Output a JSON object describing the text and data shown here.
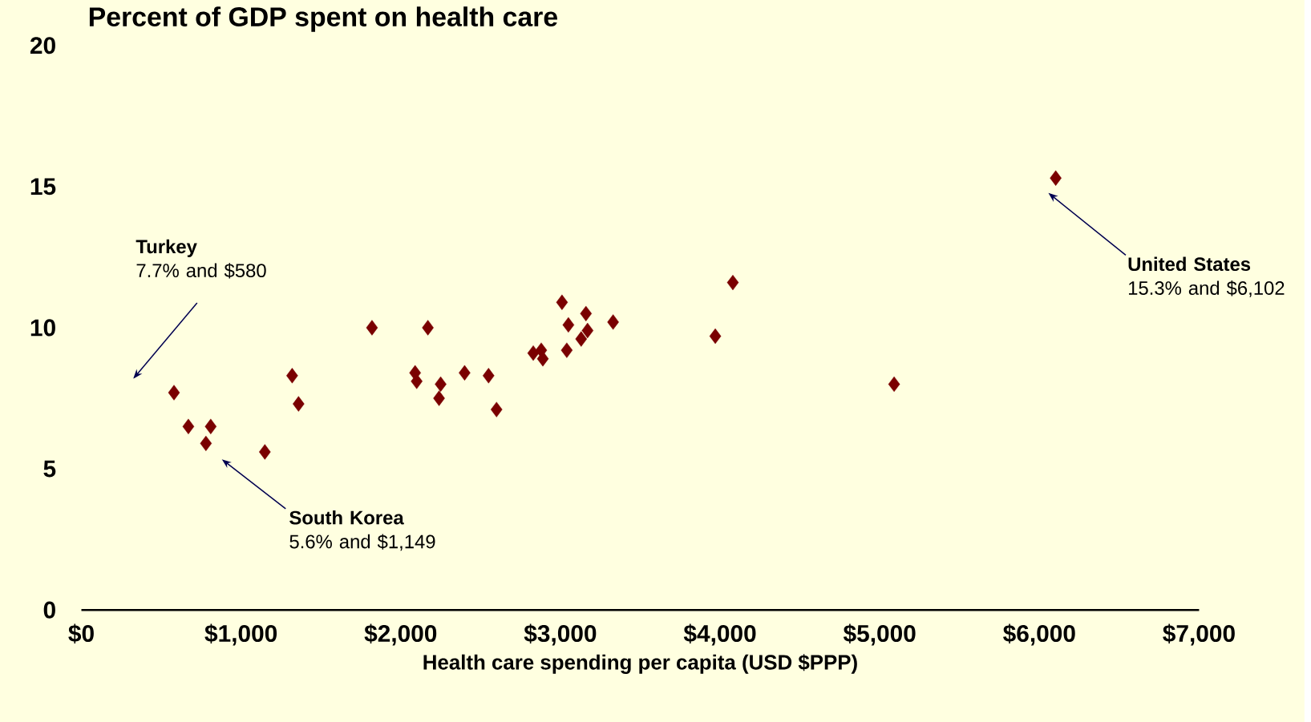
{
  "chart_data": {
    "type": "scatter",
    "title": "Percent of GDP spent on health care",
    "xlabel": "Health care spending per capita (USD $PPP)",
    "x": [
      580,
      670,
      810,
      780,
      1149,
      1320,
      1360,
      1820,
      2170,
      2090,
      2100,
      2250,
      2240,
      2400,
      2550,
      2600,
      2830,
      2880,
      2890,
      3010,
      3050,
      3160,
      3040,
      3130,
      3170,
      3330,
      3970,
      4080,
      5090,
      6102
    ],
    "series": [
      {
        "color": "#7a0000",
        "values": [
          7.7,
          6.5,
          6.5,
          5.9,
          5.6,
          8.3,
          7.3,
          10.0,
          10.0,
          8.4,
          8.1,
          8.0,
          7.5,
          8.4,
          8.3,
          7.1,
          9.1,
          9.2,
          8.9,
          10.9,
          10.1,
          10.5,
          9.2,
          9.6,
          9.9,
          10.2,
          9.7,
          11.6,
          8.0,
          15.3
        ]
      }
    ],
    "marker": "diamond",
    "xlim": [
      0,
      7000
    ],
    "xticks": [
      {
        "value": 0,
        "label": "$0"
      },
      {
        "value": 1000,
        "label": "$1,000"
      },
      {
        "value": 2000,
        "label": "$2,000"
      },
      {
        "value": 3000,
        "label": "$3,000"
      },
      {
        "value": 4000,
        "label": "$4,000"
      },
      {
        "value": 5000,
        "label": "$5,000"
      },
      {
        "value": 6000,
        "label": "$6,000"
      },
      {
        "value": 7000,
        "label": "$7,000"
      }
    ],
    "ylim": [
      0,
      20
    ],
    "yticks": [
      0,
      5,
      10,
      15,
      20
    ],
    "grid": false,
    "annotations": [
      "**Turkey**\n7.7% and $580",
      "**South Korea**\n5.6% and $1,149",
      "**United States**\n15.3% and $6,102"
    ]
  }
}
